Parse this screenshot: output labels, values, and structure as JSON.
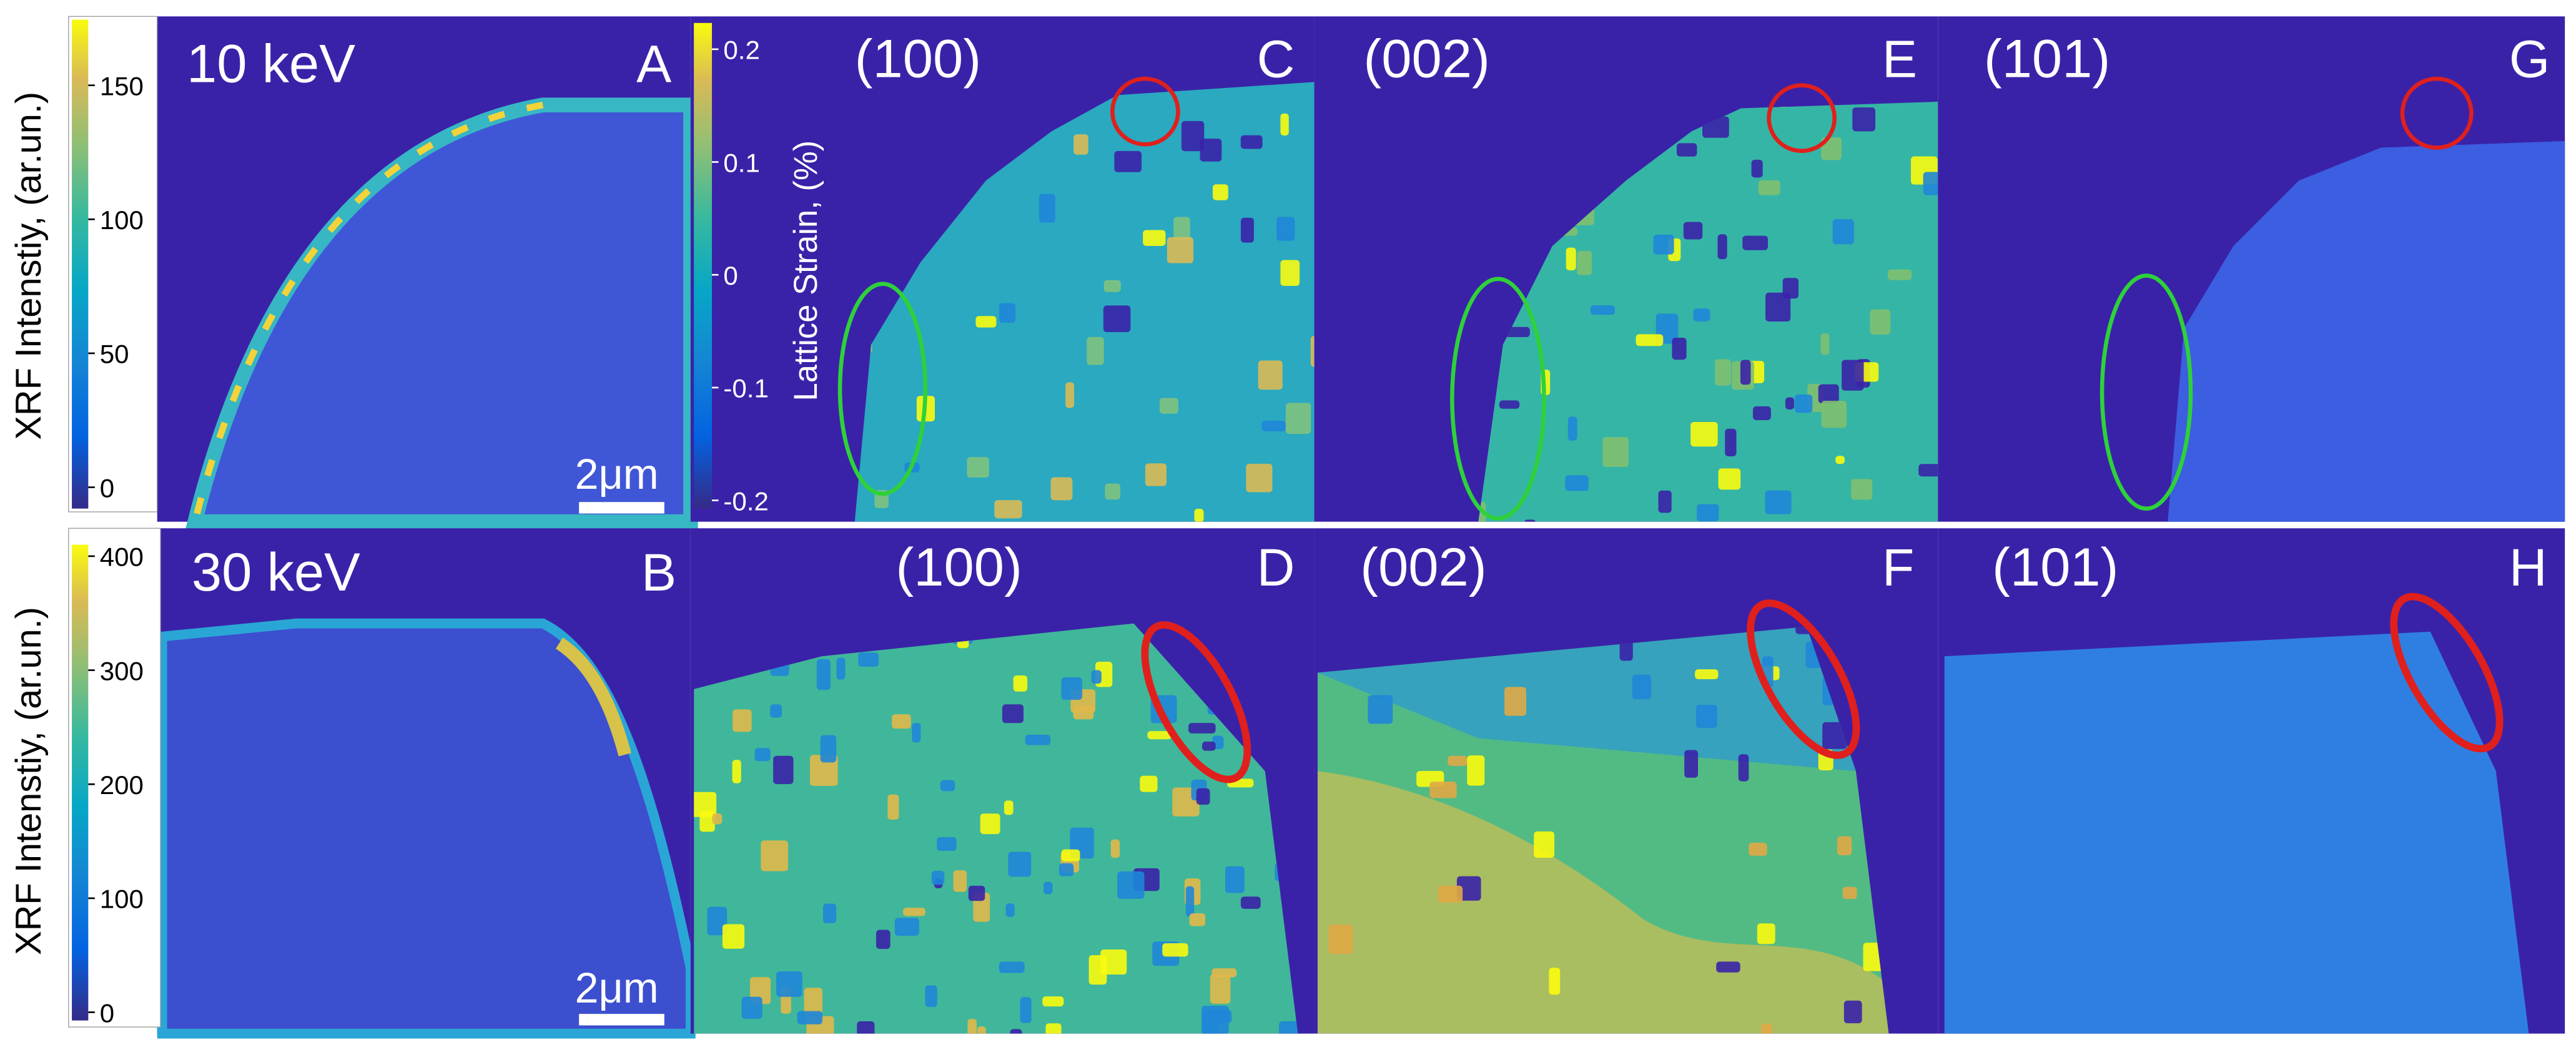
{
  "panels": [
    {
      "letter": "A",
      "title": "10 keV",
      "scale_bar": "2μm"
    },
    {
      "letter": "B",
      "title": "30 keV",
      "scale_bar": "2μm"
    },
    {
      "letter": "C",
      "title": "(100)"
    },
    {
      "letter": "D",
      "title": "(100)"
    },
    {
      "letter": "E",
      "title": "(002)"
    },
    {
      "letter": "F",
      "title": "(002)"
    },
    {
      "letter": "G",
      "title": "(101)"
    },
    {
      "letter": "H",
      "title": "(101)"
    }
  ],
  "colorbars": [
    {
      "label": "XRF Intenstiy, (ar.un.)",
      "ticks": [
        "150",
        "100",
        "50",
        "0"
      ]
    },
    {
      "label": "XRF Intenstiy, (ar.un.)",
      "ticks": [
        "400",
        "300",
        "200",
        "100",
        "0"
      ]
    },
    {
      "label": "Lattice Strain, (%)",
      "ticks": [
        "0.2",
        "0.1",
        "0",
        "-0.1",
        "-0.2"
      ]
    }
  ]
}
